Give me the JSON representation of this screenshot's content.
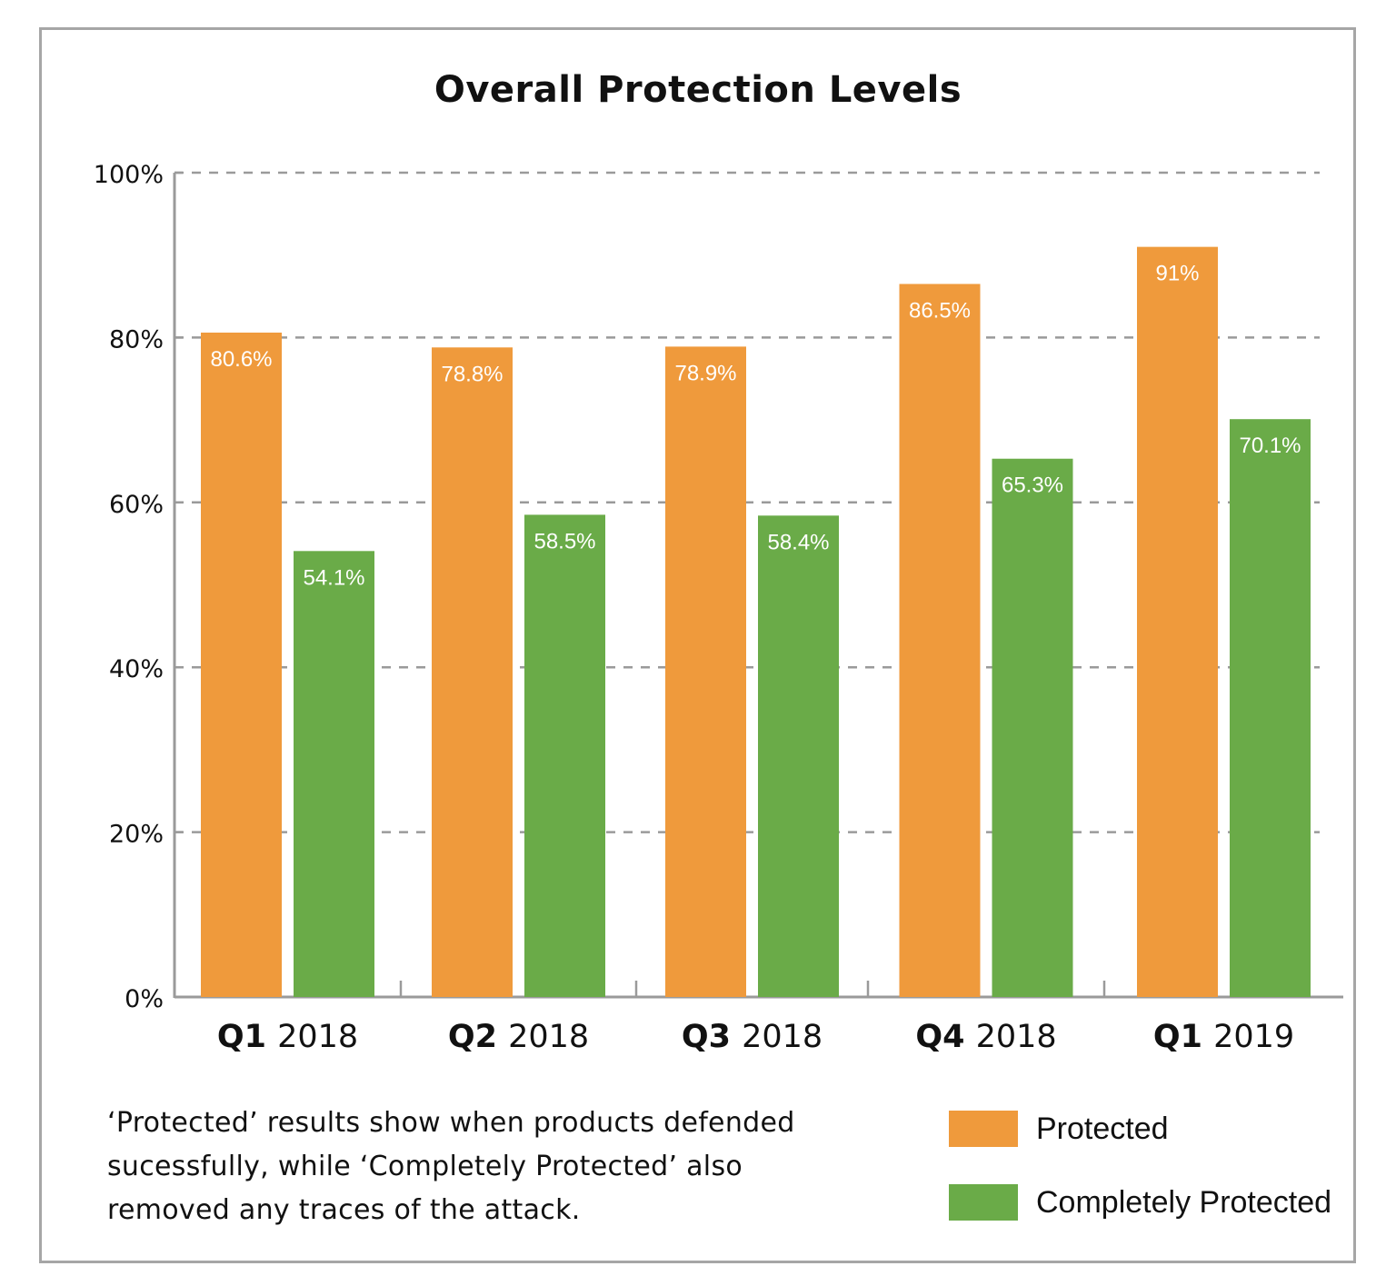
{
  "chart_data": {
    "type": "bar",
    "title": "Overall Protection Levels",
    "xlabel": "",
    "ylabel": "",
    "ylim": [
      0,
      100
    ],
    "yticks": [
      0,
      20,
      40,
      60,
      80,
      100
    ],
    "ytick_labels": [
      "0%",
      "20%",
      "40%",
      "60%",
      "80%",
      "100%"
    ],
    "grid": true,
    "categories": [
      {
        "bold": "Q1",
        "rest": "2018"
      },
      {
        "bold": "Q2",
        "rest": "2018"
      },
      {
        "bold": "Q3",
        "rest": "2018"
      },
      {
        "bold": "Q4",
        "rest": "2018"
      },
      {
        "bold": "Q1",
        "rest": "2019"
      }
    ],
    "series": [
      {
        "name": "Protected",
        "color": "#ef9a3c",
        "values": [
          80.6,
          78.8,
          78.9,
          86.5,
          91
        ],
        "labels": [
          "80.6%",
          "78.8%",
          "78.9%",
          "86.5%",
          "91%"
        ]
      },
      {
        "name": "Completely Protected",
        "color": "#6aab48",
        "values": [
          54.1,
          58.5,
          58.4,
          65.3,
          70.1
        ],
        "labels": [
          "54.1%",
          "58.5%",
          "58.4%",
          "65.3%",
          "70.1%"
        ]
      }
    ],
    "legend_position": "bottom-right",
    "annotation": "‘Protected’ results show when products defended sucessfully, while ‘Completely Protected’ also removed any traces of the attack."
  },
  "note_lines": [
    "‘Protected’ results show when products defended",
    "sucessfully, while ‘Completely Protected’ also",
    "removed any traces of the attack."
  ],
  "legend": [
    {
      "label": "Protected",
      "color": "#ef9a3c"
    },
    {
      "label": "Completely Protected",
      "color": "#6aab48"
    }
  ]
}
